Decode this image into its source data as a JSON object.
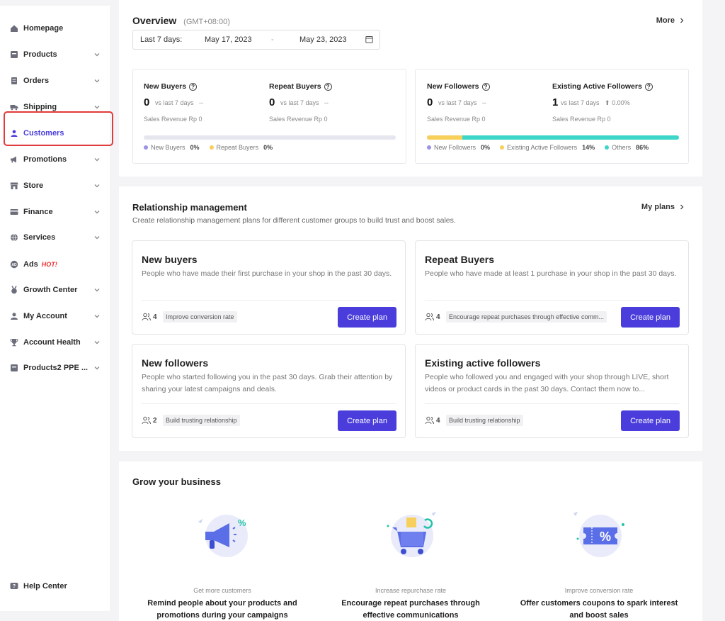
{
  "sidebar": {
    "items": [
      {
        "label": "Homepage",
        "icon": "home-icon"
      },
      {
        "label": "Products",
        "icon": "products-icon"
      },
      {
        "label": "Orders",
        "icon": "orders-icon"
      },
      {
        "label": "Shipping",
        "icon": "truck-icon"
      },
      {
        "label": "Customers",
        "icon": "person-icon"
      },
      {
        "label": "Promotions",
        "icon": "megaphone-icon"
      },
      {
        "label": "Store",
        "icon": "store-icon"
      },
      {
        "label": "Finance",
        "icon": "card-icon"
      },
      {
        "label": "Services",
        "icon": "globe-icon"
      },
      {
        "label": "Ads",
        "icon": "ads-icon",
        "badge": "HOT!"
      },
      {
        "label": "Growth Center",
        "icon": "medal-icon"
      },
      {
        "label": "My Account",
        "icon": "user-icon"
      },
      {
        "label": "Account Health",
        "icon": "trophy-icon"
      },
      {
        "label": "Products2 PPE ...",
        "icon": "box-icon"
      }
    ],
    "help": {
      "label": "Help Center",
      "icon": "help-icon"
    }
  },
  "overview": {
    "title": "Overview",
    "timezone": "(GMT+08:00)",
    "more": "More",
    "date_label": "Last 7 days:",
    "date_start": "May 17, 2023",
    "date_sep": "-",
    "date_end": "May 23, 2023",
    "buyers": {
      "new": {
        "title": "New Buyers",
        "value": "0",
        "compare": "vs last 7 days",
        "change": "--",
        "revenue": "Sales Revenue Rp 0"
      },
      "repeat": {
        "title": "Repeat Buyers",
        "value": "0",
        "compare": "vs last 7 days",
        "change": "--",
        "revenue": "Sales Revenue Rp 0"
      },
      "legend": [
        {
          "label": "New Buyers",
          "value": "0%",
          "color": "#9b93e6"
        },
        {
          "label": "Repeat Buyers",
          "value": "0%",
          "color": "#f7cf5b"
        }
      ]
    },
    "followers": {
      "new": {
        "title": "New Followers",
        "value": "0",
        "compare": "vs last 7 days",
        "change": "--",
        "revenue": "Sales Revenue Rp 0"
      },
      "existing": {
        "title": "Existing Active Followers",
        "value": "1",
        "compare": "vs last 7 days",
        "change": "⬆ 0.00%",
        "revenue": "Sales Revenue Rp 0"
      },
      "legend": [
        {
          "label": "New Followers",
          "value": "0%",
          "color": "#9b93e6"
        },
        {
          "label": "Existing Active Followers",
          "value": "14%",
          "color": "#f7cf5b"
        },
        {
          "label": "Others",
          "value": "86%",
          "color": "#3ed6c8"
        }
      ],
      "shares": {
        "existing": 14,
        "others": 86
      }
    }
  },
  "relationship": {
    "title": "Relationship management",
    "subtitle": "Create relationship management plans for different customer groups to build trust and boost sales.",
    "my_plans": "My plans",
    "cards": [
      {
        "title": "New buyers",
        "desc": "People who have made their first purchase in your shop in the past 30 days.",
        "count": "4",
        "tag": "Improve conversion rate",
        "button": "Create plan"
      },
      {
        "title": "Repeat Buyers",
        "desc": "People who have made at least 1 purchase in your shop in the past 30 days.",
        "count": "4",
        "tag": "Encourage repeat purchases through effective comm...",
        "button": "Create plan"
      },
      {
        "title": "New followers",
        "desc": "People who started following you in the past 30 days. Grab their attention by sharing your latest campaigns and deals.",
        "count": "2",
        "tag": "Build trusting relationship",
        "button": "Create plan"
      },
      {
        "title": "Existing active followers",
        "desc": "People who followed you and engaged with your shop through LIVE, short videos or product cards in the past 30 days. Contact them now to...",
        "count": "4",
        "tag": "Build trusting relationship",
        "button": "Create plan"
      }
    ]
  },
  "grow": {
    "title": "Grow your business",
    "items": [
      {
        "sub": "Get more customers",
        "main": "Remind people about your products and promotions during your campaigns"
      },
      {
        "sub": "Increase repurchase rate",
        "main": "Encourage repeat purchases through effective communications"
      },
      {
        "sub": "Improve conversion rate",
        "main": "Offer customers coupons to spark interest and boost sales"
      }
    ]
  }
}
